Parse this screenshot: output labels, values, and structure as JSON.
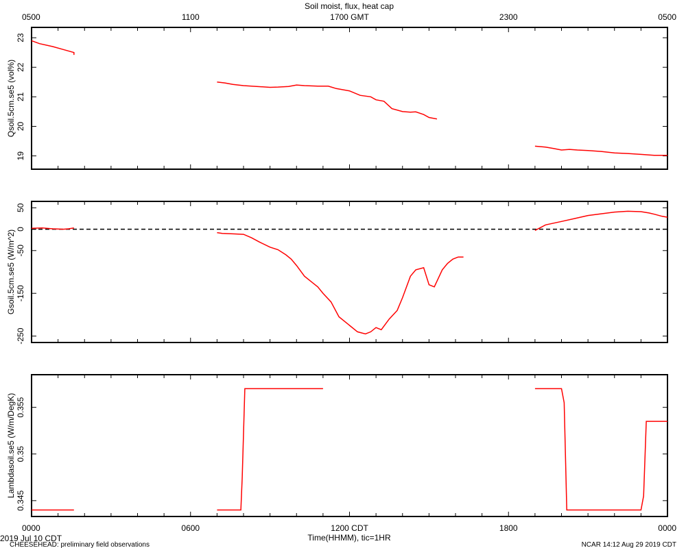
{
  "title": "Soil moist, flux, heat cap",
  "top_axis": {
    "labels": [
      "0500",
      "1100",
      "1700 GMT",
      "2300",
      "0500"
    ]
  },
  "bottom_axis": {
    "labels": [
      "0000",
      "0600",
      "1200 CDT",
      "1800",
      "0000"
    ],
    "xlabel": "Time(HHMM), tic=1HR"
  },
  "footer": {
    "date": "2019 Jul 10 CDT",
    "project": "CHEESEHEAD: preliminary field observations",
    "stamp": "NCAR 14:12 Aug 29 2019 CDT"
  },
  "colors": {
    "series": "#ff0000",
    "axes": "#000000",
    "zero_line": "#000000"
  },
  "chart_data": [
    {
      "type": "line",
      "ylabel": "Qsoil.5cm.se5 (vol%)",
      "yticks": [
        23,
        22,
        21,
        20,
        19
      ],
      "ylim": [
        18.55,
        23.35
      ],
      "xlim": [
        0,
        24
      ],
      "series": [
        {
          "segments": [
            [
              [
                0,
                22.9
              ],
              [
                0.3,
                22.8
              ],
              [
                0.8,
                22.7
              ],
              [
                1.2,
                22.6
              ],
              [
                1.6,
                22.5
              ],
              [
                1.6,
                22.42
              ]
            ],
            [
              [
                7.0,
                21.5
              ],
              [
                7.3,
                21.47
              ],
              [
                7.6,
                21.42
              ],
              [
                8.0,
                21.38
              ],
              [
                8.5,
                21.35
              ],
              [
                9.0,
                21.32
              ],
              [
                9.3,
                21.33
              ],
              [
                9.7,
                21.35
              ],
              [
                10.0,
                21.4
              ],
              [
                10.3,
                21.38
              ],
              [
                10.8,
                21.36
              ],
              [
                11.2,
                21.36
              ],
              [
                11.5,
                21.28
              ],
              [
                12.0,
                21.2
              ],
              [
                12.4,
                21.05
              ],
              [
                12.8,
                21.0
              ],
              [
                13.0,
                20.9
              ],
              [
                13.3,
                20.85
              ],
              [
                13.6,
                20.6
              ],
              [
                14.0,
                20.5
              ],
              [
                14.3,
                20.48
              ],
              [
                14.5,
                20.49
              ],
              [
                14.8,
                20.4
              ],
              [
                15.0,
                20.3
              ],
              [
                15.3,
                20.25
              ]
            ],
            [
              [
                19.0,
                19.33
              ],
              [
                19.4,
                19.3
              ],
              [
                19.7,
                19.25
              ],
              [
                20.0,
                19.2
              ],
              [
                20.3,
                19.22
              ],
              [
                20.6,
                19.2
              ],
              [
                21.0,
                19.18
              ],
              [
                21.5,
                19.15
              ],
              [
                22.0,
                19.1
              ],
              [
                22.5,
                19.08
              ],
              [
                23.0,
                19.05
              ],
              [
                23.5,
                19.02
              ],
              [
                24.0,
                19.02
              ]
            ]
          ]
        }
      ]
    },
    {
      "type": "line",
      "ylabel": "Gsoil.5cm.se5 (W/m^2)",
      "yticks": [
        50,
        0,
        -50,
        -150,
        -250
      ],
      "ylim": [
        -265,
        65
      ],
      "xlim": [
        0,
        24
      ],
      "zero_line": true,
      "series": [
        {
          "segments": [
            [
              [
                0,
                2
              ],
              [
                0.4,
                3
              ],
              [
                0.8,
                1
              ],
              [
                1.2,
                0
              ],
              [
                1.4,
                1
              ],
              [
                1.6,
                3
              ]
            ],
            [
              [
                7.0,
                -8
              ],
              [
                7.2,
                -10
              ],
              [
                7.6,
                -11
              ],
              [
                8.0,
                -12
              ],
              [
                8.3,
                -20
              ],
              [
                8.6,
                -30
              ],
              [
                9.0,
                -42
              ],
              [
                9.3,
                -48
              ],
              [
                9.6,
                -60
              ],
              [
                9.8,
                -70
              ],
              [
                10.0,
                -85
              ],
              [
                10.3,
                -110
              ],
              [
                10.6,
                -125
              ],
              [
                10.8,
                -135
              ],
              [
                11.0,
                -150
              ],
              [
                11.3,
                -170
              ],
              [
                11.6,
                -205
              ],
              [
                12.0,
                -225
              ],
              [
                12.3,
                -240
              ],
              [
                12.6,
                -245
              ],
              [
                12.8,
                -240
              ],
              [
                13.0,
                -230
              ],
              [
                13.2,
                -235
              ],
              [
                13.5,
                -210
              ],
              [
                13.8,
                -190
              ],
              [
                14.0,
                -160
              ],
              [
                14.3,
                -110
              ],
              [
                14.5,
                -95
              ],
              [
                14.8,
                -90
              ],
              [
                15.0,
                -130
              ],
              [
                15.2,
                -135
              ],
              [
                15.5,
                -95
              ],
              [
                15.7,
                -80
              ],
              [
                15.9,
                -70
              ],
              [
                16.1,
                -65
              ],
              [
                16.3,
                -65
              ]
            ],
            [
              [
                19.0,
                -3
              ],
              [
                19.4,
                10
              ],
              [
                20.0,
                18
              ],
              [
                20.5,
                25
              ],
              [
                21.0,
                32
              ],
              [
                21.5,
                36
              ],
              [
                22.0,
                40
              ],
              [
                22.5,
                42
              ],
              [
                23.0,
                41
              ],
              [
                23.3,
                38
              ],
              [
                23.5,
                35
              ],
              [
                23.8,
                30
              ],
              [
                24.0,
                28
              ]
            ]
          ]
        }
      ]
    },
    {
      "type": "line",
      "ylabel": "Lambdasoil.se5 (W/m/DegK)",
      "yticks": [
        0.355,
        0.35,
        0.345
      ],
      "ylim": [
        0.3433,
        0.3585
      ],
      "xlim": [
        0,
        24
      ],
      "series": [
        {
          "segments": [
            [
              [
                0,
                0.344
              ],
              [
                1.6,
                0.344
              ]
            ],
            [
              [
                7.0,
                0.344
              ],
              [
                7.9,
                0.344
              ],
              [
                7.95,
                0.3475
              ],
              [
                8.05,
                0.357
              ],
              [
                11.0,
                0.357
              ]
            ],
            [
              [
                19.0,
                0.357
              ],
              [
                20.0,
                0.357
              ],
              [
                20.1,
                0.3555
              ],
              [
                20.2,
                0.344
              ],
              [
                23.0,
                0.344
              ],
              [
                23.1,
                0.3455
              ],
              [
                23.2,
                0.3535
              ],
              [
                24.0,
                0.3535
              ]
            ]
          ]
        }
      ]
    }
  ]
}
